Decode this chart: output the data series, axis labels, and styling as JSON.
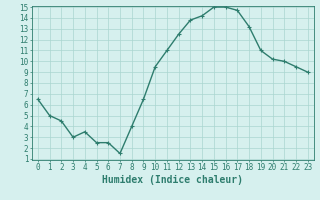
{
  "x": [
    0,
    1,
    2,
    3,
    4,
    5,
    6,
    7,
    8,
    9,
    10,
    11,
    12,
    13,
    14,
    15,
    16,
    17,
    18,
    19,
    20,
    21,
    22,
    23
  ],
  "y": [
    6.5,
    5.0,
    4.5,
    3.0,
    3.5,
    2.5,
    2.5,
    1.5,
    4.0,
    6.5,
    9.5,
    11.0,
    12.5,
    13.8,
    14.2,
    15.0,
    15.0,
    14.7,
    13.2,
    11.0,
    10.2,
    10.0,
    9.5,
    9.0
  ],
  "line_color": "#2e7d6e",
  "marker": "+",
  "marker_size": 3,
  "bg_color": "#d6f0ee",
  "grid_color": "#aad6d0",
  "xlabel": "Humidex (Indice chaleur)",
  "ylabel": "",
  "xlim": [
    -0.5,
    23.5
  ],
  "ylim": [
    1,
    15
  ],
  "xticks": [
    0,
    1,
    2,
    3,
    4,
    5,
    6,
    7,
    8,
    9,
    10,
    11,
    12,
    13,
    14,
    15,
    16,
    17,
    18,
    19,
    20,
    21,
    22,
    23
  ],
  "yticks": [
    1,
    2,
    3,
    4,
    5,
    6,
    7,
    8,
    9,
    10,
    11,
    12,
    13,
    14,
    15
  ],
  "tick_label_fontsize": 5.5,
  "xlabel_fontsize": 7,
  "axis_color": "#2e7d6e",
  "line_width": 1.0
}
